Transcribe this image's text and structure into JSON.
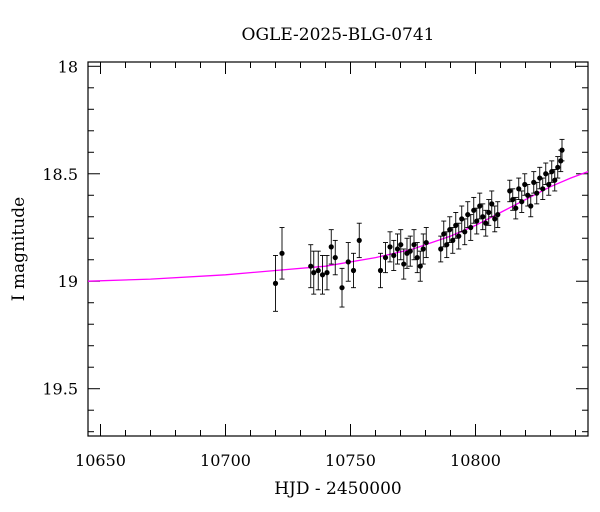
{
  "chart_data": {
    "type": "scatter",
    "title": "OGLE-2025-BLG-0741",
    "xlabel": "HJD - 2450000",
    "ylabel": "I magnitude",
    "xlim": [
      10645,
      10845
    ],
    "ylim": [
      19.72,
      17.98
    ],
    "y_inverted": true,
    "grid": false,
    "x_ticks": [
      10650,
      10700,
      10750,
      10800
    ],
    "x_tick_labels": [
      "10650",
      "10700",
      "10750",
      "10800"
    ],
    "y_ticks": [
      18,
      18.5,
      19,
      19.5
    ],
    "y_tick_labels": [
      "18",
      "18.5",
      "19",
      "19.5"
    ],
    "marker_color": "#000000",
    "model_color": "#ff00ff",
    "series": [
      {
        "kind": "data",
        "points": [
          [
            10720.0,
            19.01,
            0.13
          ],
          [
            10722.6,
            18.87,
            0.12
          ],
          [
            10734.1,
            18.93,
            0.1
          ],
          [
            10735.3,
            18.96,
            0.1
          ],
          [
            10737.1,
            18.95,
            0.09
          ],
          [
            10738.8,
            18.97,
            0.09
          ],
          [
            10740.6,
            18.96,
            0.08
          ],
          [
            10742.3,
            18.84,
            0.08
          ],
          [
            10743.9,
            18.89,
            0.08
          ],
          [
            10746.6,
            19.03,
            0.09
          ],
          [
            10749.1,
            18.91,
            0.09
          ],
          [
            10751.2,
            18.95,
            0.08
          ],
          [
            10753.5,
            18.81,
            0.08
          ],
          [
            10762.0,
            18.95,
            0.08
          ],
          [
            10764.0,
            18.89,
            0.07
          ],
          [
            10765.8,
            18.84,
            0.07
          ],
          [
            10767.3,
            18.88,
            0.07
          ],
          [
            10768.8,
            18.85,
            0.07
          ],
          [
            10770.1,
            18.83,
            0.07
          ],
          [
            10771.3,
            18.92,
            0.07
          ],
          [
            10772.6,
            18.87,
            0.07
          ],
          [
            10773.9,
            18.86,
            0.07
          ],
          [
            10775.4,
            18.83,
            0.07
          ],
          [
            10776.7,
            18.89,
            0.07
          ],
          [
            10777.9,
            18.93,
            0.07
          ],
          [
            10779.1,
            18.85,
            0.07
          ],
          [
            10780.3,
            18.82,
            0.07
          ],
          [
            10786.1,
            18.85,
            0.06
          ],
          [
            10787.3,
            18.78,
            0.06
          ],
          [
            10788.5,
            18.83,
            0.06
          ],
          [
            10789.7,
            18.76,
            0.06
          ],
          [
            10790.9,
            18.81,
            0.06
          ],
          [
            10792.1,
            18.74,
            0.06
          ],
          [
            10793.3,
            18.79,
            0.06
          ],
          [
            10794.5,
            18.71,
            0.06
          ],
          [
            10795.7,
            18.77,
            0.06
          ],
          [
            10796.9,
            18.69,
            0.06
          ],
          [
            10798.1,
            18.75,
            0.06
          ],
          [
            10799.3,
            18.67,
            0.06
          ],
          [
            10800.5,
            18.72,
            0.06
          ],
          [
            10801.7,
            18.65,
            0.06
          ],
          [
            10802.9,
            18.7,
            0.06
          ],
          [
            10804.1,
            18.73,
            0.06
          ],
          [
            10805.3,
            18.68,
            0.06
          ],
          [
            10806.5,
            18.64,
            0.06
          ],
          [
            10807.7,
            18.71,
            0.06
          ],
          [
            10808.9,
            18.69,
            0.06
          ],
          [
            10813.7,
            18.58,
            0.05
          ],
          [
            10814.9,
            18.62,
            0.05
          ],
          [
            10816.1,
            18.66,
            0.05
          ],
          [
            10817.3,
            18.57,
            0.05
          ],
          [
            10818.5,
            18.63,
            0.05
          ],
          [
            10819.7,
            18.55,
            0.05
          ],
          [
            10820.9,
            18.6,
            0.05
          ],
          [
            10822.1,
            18.65,
            0.05
          ],
          [
            10823.3,
            18.54,
            0.05
          ],
          [
            10824.5,
            18.59,
            0.05
          ],
          [
            10825.7,
            18.52,
            0.05
          ],
          [
            10826.9,
            18.57,
            0.05
          ],
          [
            10828.1,
            18.5,
            0.05
          ],
          [
            10829.3,
            18.55,
            0.05
          ],
          [
            10830.5,
            18.49,
            0.05
          ],
          [
            10831.7,
            18.53,
            0.05
          ],
          [
            10832.9,
            18.47,
            0.05
          ],
          [
            10834.1,
            18.44,
            0.05
          ],
          [
            10834.6,
            18.39,
            0.05
          ]
        ]
      },
      {
        "kind": "model",
        "line_points": [
          [
            10645,
            19.0
          ],
          [
            10670,
            18.99
          ],
          [
            10700,
            18.97
          ],
          [
            10720,
            18.95
          ],
          [
            10740,
            18.93
          ],
          [
            10760,
            18.89
          ],
          [
            10775,
            18.85
          ],
          [
            10790,
            18.79
          ],
          [
            10800,
            18.74
          ],
          [
            10810,
            18.68
          ],
          [
            10820,
            18.62
          ],
          [
            10830,
            18.56
          ],
          [
            10838,
            18.52
          ],
          [
            10845,
            18.49
          ]
        ]
      }
    ]
  }
}
